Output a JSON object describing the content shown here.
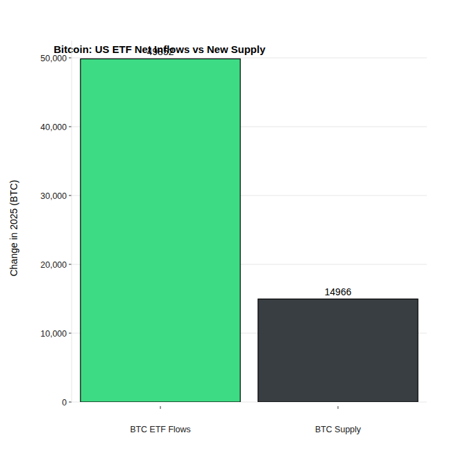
{
  "chart_data": {
    "type": "bar",
    "title": "Bitcoin: US ETF Net Inflows vs New Supply",
    "y_label": "Change in 2025 (BTC)",
    "categories": [
      "BTC ETF Flows",
      "BTC Supply"
    ],
    "values": [
      49852,
      14966
    ],
    "colors": [
      "#3ddc84",
      "#393e42"
    ],
    "ylim": [
      0,
      52500
    ],
    "yticks": [
      0,
      {
        "value": 10000,
        "label": "10,000"
      },
      {
        "value": 20000,
        "label": "20,000"
      },
      {
        "value": 30000,
        "label": "30,000"
      },
      {
        "value": 40000,
        "label": "40,000"
      },
      {
        "value": 50000,
        "label": "50,000"
      }
    ],
    "grid": true,
    "data_labels": true
  }
}
